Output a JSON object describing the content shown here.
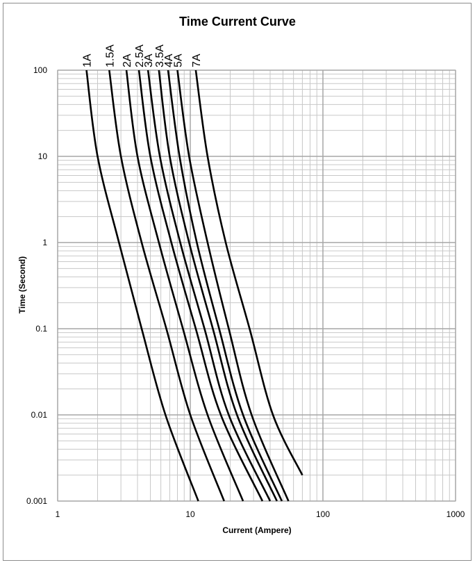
{
  "chart_data": {
    "type": "line",
    "title": "Time Current Curve",
    "xlabel": "Current (Ampere)",
    "ylabel": "Time (Second)",
    "x_scale": "log",
    "y_scale": "log",
    "xlim": [
      1,
      1000
    ],
    "ylim": [
      0.001,
      100
    ],
    "x_ticks": [
      "1",
      "10",
      "100",
      "1000"
    ],
    "y_ticks": [
      "100",
      "10",
      "1",
      "0.1",
      "0.01",
      "0.001"
    ],
    "grid": true,
    "legend": "labels along top of curves",
    "line_color": "#000000",
    "series": [
      {
        "name": "1A",
        "points": [
          [
            1.65,
            100
          ],
          [
            2.0,
            10
          ],
          [
            2.9,
            1
          ],
          [
            4.3,
            0.1
          ],
          [
            6.5,
            0.01
          ],
          [
            11.5,
            0.001
          ]
        ]
      },
      {
        "name": "1.5A",
        "points": [
          [
            2.45,
            100
          ],
          [
            3.0,
            10
          ],
          [
            4.3,
            1
          ],
          [
            6.6,
            0.1
          ],
          [
            10.0,
            0.01
          ],
          [
            18.0,
            0.001
          ]
        ]
      },
      {
        "name": "2A",
        "points": [
          [
            3.3,
            100
          ],
          [
            4.0,
            10
          ],
          [
            5.8,
            1
          ],
          [
            8.8,
            0.1
          ],
          [
            13.5,
            0.01
          ],
          [
            25.0,
            0.001
          ]
        ]
      },
      {
        "name": "2.5A",
        "points": [
          [
            4.1,
            100
          ],
          [
            5.0,
            10
          ],
          [
            7.2,
            1
          ],
          [
            11.0,
            0.1
          ],
          [
            17.0,
            0.01
          ],
          [
            35.0,
            0.001
          ]
        ]
      },
      {
        "name": "3A",
        "points": [
          [
            4.8,
            100
          ],
          [
            5.9,
            10
          ],
          [
            8.4,
            1
          ],
          [
            12.8,
            0.1
          ],
          [
            19.5,
            0.01
          ],
          [
            40.0,
            0.001
          ]
        ]
      },
      {
        "name": "3.5A",
        "points": [
          [
            5.8,
            100
          ],
          [
            7.0,
            10
          ],
          [
            9.8,
            1
          ],
          [
            14.8,
            0.1
          ],
          [
            22.5,
            0.01
          ],
          [
            45.0,
            0.001
          ]
        ]
      },
      {
        "name": "4A",
        "points": [
          [
            6.8,
            100
          ],
          [
            8.3,
            10
          ],
          [
            11.2,
            1
          ],
          [
            16.5,
            0.1
          ],
          [
            25.0,
            0.01
          ],
          [
            49.0,
            0.001
          ]
        ]
      },
      {
        "name": "5A",
        "points": [
          [
            8.0,
            100
          ],
          [
            9.8,
            10
          ],
          [
            13.5,
            1
          ],
          [
            19.5,
            0.1
          ],
          [
            29.0,
            0.01
          ],
          [
            55.0,
            0.001
          ]
        ]
      },
      {
        "name": "7A",
        "points": [
          [
            11.0,
            100
          ],
          [
            13.5,
            10
          ],
          [
            18.5,
            1
          ],
          [
            28.0,
            0.1
          ],
          [
            42.0,
            0.01
          ],
          [
            70.0,
            0.002
          ]
        ]
      }
    ]
  }
}
